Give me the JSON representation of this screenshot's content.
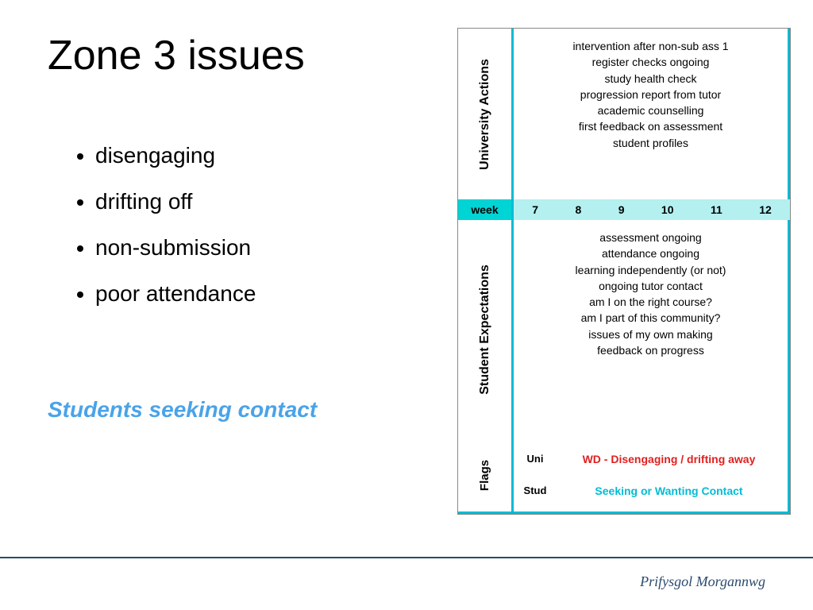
{
  "title": "Zone 3 issues",
  "bullets": [
    "disengaging",
    "drifting off",
    "non-submission",
    "poor attendance"
  ],
  "highlight": "Students seeking contact",
  "colors": {
    "cyan_border": "#00bcd4",
    "cyan_fill_dark": "#00d4d4",
    "cyan_fill_light": "#b4f0f0",
    "highlight_blue": "#4aa3e8",
    "footer_navy": "#2b4a6f",
    "flag_red": "#e02020"
  },
  "panel": {
    "university_actions": {
      "label": "University Actions",
      "items": [
        "intervention after non-sub ass 1",
        "register checks ongoing",
        "study health check",
        "progression report from tutor",
        "academic counselling",
        "first feedback on assessment",
        "student profiles"
      ]
    },
    "week": {
      "label": "week",
      "numbers": [
        "7",
        "8",
        "9",
        "10",
        "11",
        "12"
      ]
    },
    "student_expectations": {
      "label": "Student Expectations",
      "items": [
        "assessment ongoing",
        "attendance ongoing",
        "learning independently (or not)",
        "ongoing tutor contact",
        "am I on the right course?",
        "am I part of this community?",
        "issues of my own making",
        "feedback on progress"
      ]
    },
    "flags": {
      "label": "Flags",
      "rows": [
        {
          "tag": "Uni",
          "text": "WD - Disengaging / drifting away",
          "color": "#e02020"
        },
        {
          "tag": "Stud",
          "text": "Seeking or Wanting Contact",
          "color": "#00bcd4"
        }
      ]
    }
  },
  "footer": "Prifysgol Morgannwg"
}
